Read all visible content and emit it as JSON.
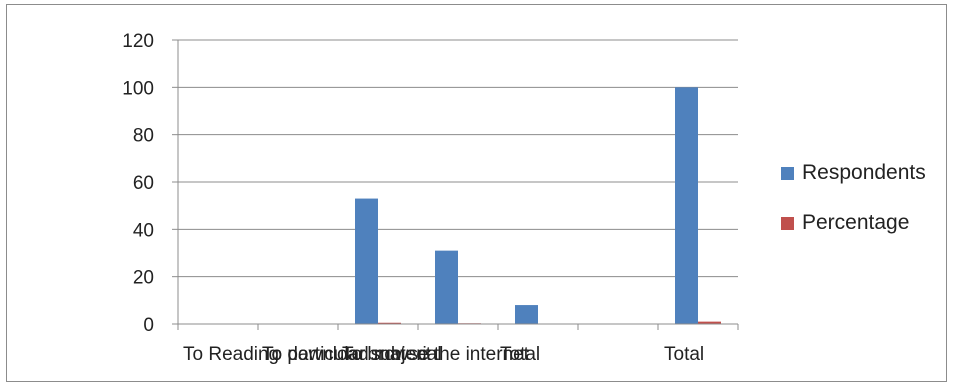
{
  "chart_data": {
    "type": "bar",
    "categories": [
      "To Reading",
      "To particular subject",
      "To download material",
      "To browse the internet",
      "Total",
      "Total"
    ],
    "series": [
      {
        "name": "Respondents",
        "color": "#4f81bd",
        "values": [
          0,
          0,
          53,
          31,
          8,
          100
        ]
      },
      {
        "name": "Percentage",
        "color": "#c0504d",
        "values": [
          0,
          0,
          0.53,
          0.31,
          0.08,
          1
        ]
      }
    ],
    "ylim": [
      0,
      120
    ],
    "yticks": [
      0,
      20,
      40,
      60,
      80,
      100,
      120
    ],
    "grid": true,
    "legend": "right"
  }
}
